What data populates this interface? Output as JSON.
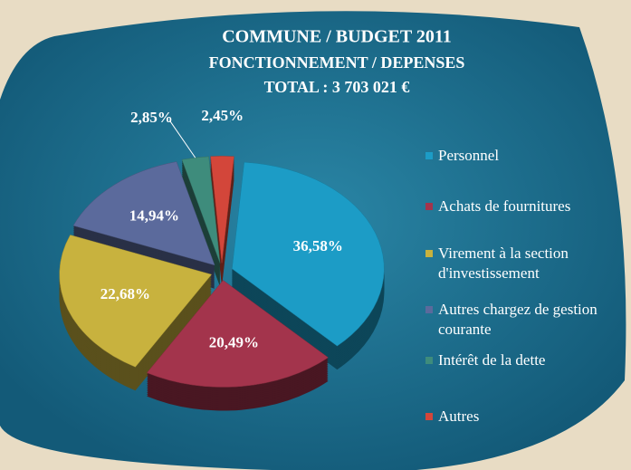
{
  "chart_data": {
    "type": "pie",
    "title": "COMMUNE / BUDGET 2011",
    "subtitle": [
      "FONCTIONNEMENT / DEPENSES",
      "TOTAL : 3 703 021 €"
    ],
    "categories": [
      "Personnel",
      "Achats de fournitures",
      "Virement à la section d'investissement",
      "Autres chargez de gestion courante",
      "Intérêt de la dette",
      "Autres"
    ],
    "values": [
      36.58,
      20.49,
      22.68,
      14.94,
      2.85,
      2.45
    ],
    "value_labels": [
      "36,58%",
      "20,49%",
      "22,68%",
      "14,94%",
      "2,85%",
      "2,45%"
    ],
    "colors": [
      "#1c9cc6",
      "#a3344c",
      "#c8b23e",
      "#5b6a9c",
      "#3e8c7c",
      "#d3463a"
    ]
  }
}
